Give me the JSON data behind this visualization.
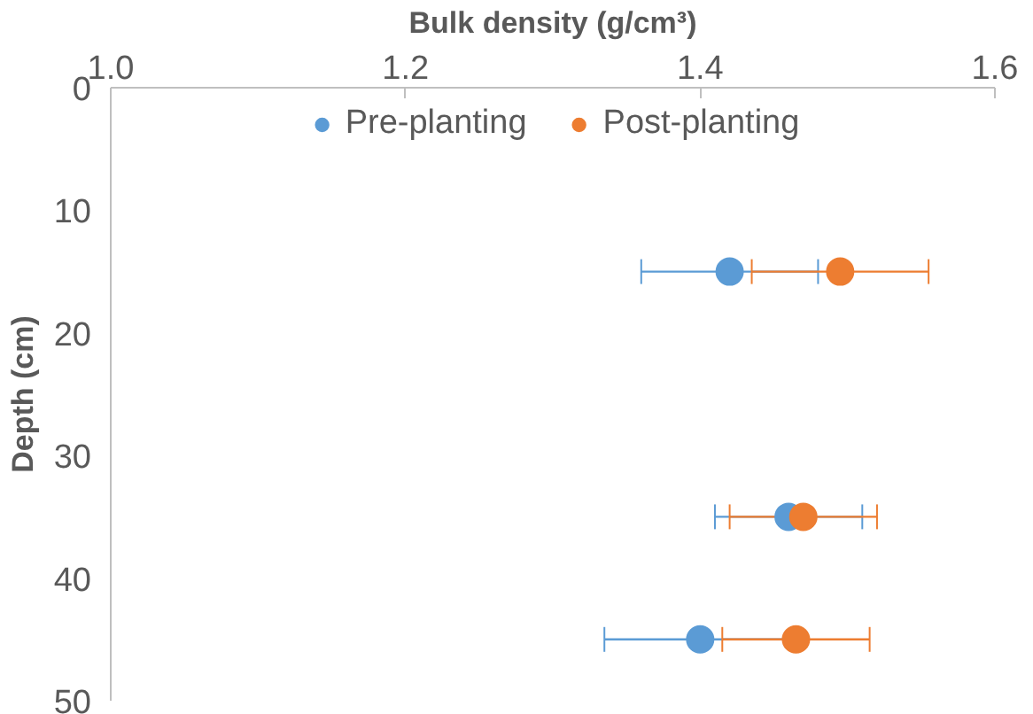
{
  "chart_data": {
    "type": "scatter",
    "xlabel": "Bulk density (g/cm³)",
    "ylabel": "Depth (cm)",
    "xlim": [
      1.0,
      1.6
    ],
    "xticks": [
      {
        "value": 1.0,
        "label": "1.0"
      },
      {
        "value": 1.2,
        "label": "1.2"
      },
      {
        "value": 1.4,
        "label": "1.4"
      },
      {
        "value": 1.6,
        "label": "1.6"
      }
    ],
    "ylim": [
      50,
      0
    ],
    "yticks": [
      0,
      10,
      20,
      30,
      40,
      50
    ],
    "grid": false,
    "legend": "top",
    "marker": "circle",
    "series": [
      {
        "name": "Pre-planting",
        "color": "#5b9bd5",
        "x": [
          1.42,
          1.46,
          1.4
        ],
        "values": [
          15,
          35,
          45
        ],
        "xerrors": [
          0.06,
          0.05,
          0.065
        ]
      },
      {
        "name": "Post-planting",
        "color": "#ed7d31",
        "x": [
          1.495,
          1.47,
          1.465
        ],
        "values": [
          15,
          35,
          45
        ],
        "xerrors": [
          0.06,
          0.05,
          0.05
        ]
      }
    ]
  }
}
